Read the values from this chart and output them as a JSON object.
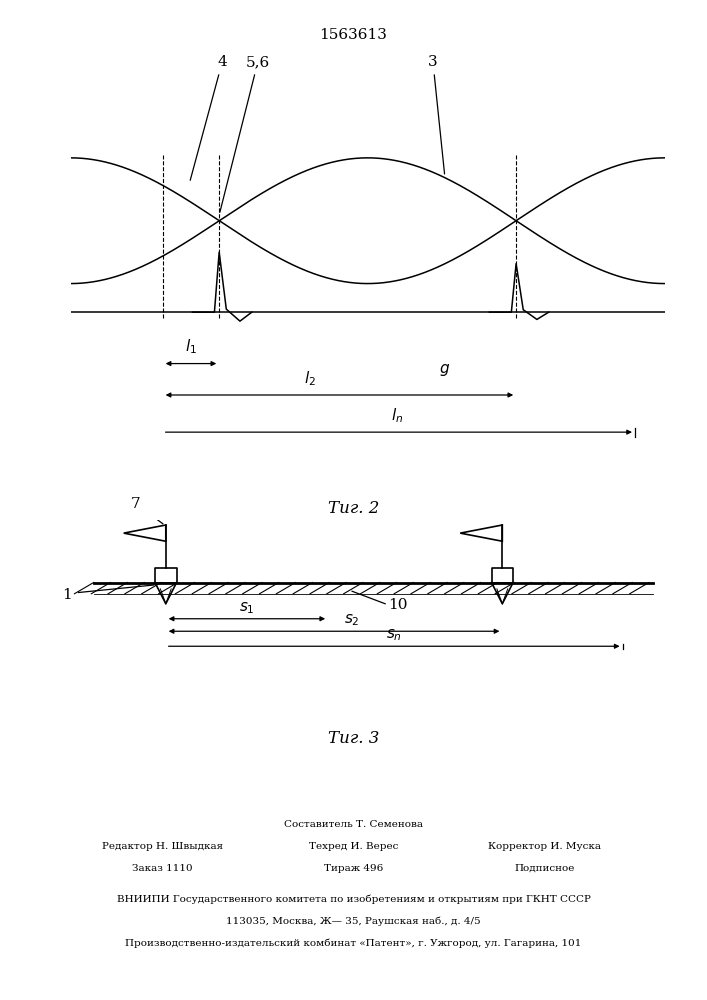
{
  "title": "1563613",
  "fig2_caption": "Τиг. 2",
  "fig3_caption": "Τиг. 3",
  "lc": "#000000",
  "bg": "#ffffff",
  "footer_col1_l1": "Редактор Н. Швыдкая",
  "footer_col1_l2": "Заказ 1110",
  "footer_col2_l1": "Составитель Т. Семенова",
  "footer_col2_l2": "Техред И. Верес",
  "footer_col2_l3": "Тираж 496",
  "footer_col3_l1": "Корректор И. Муска",
  "footer_col3_l2": "Подписное",
  "footer_vnipi": "ВНИИПИ Государственного комитета по изобретениям и открытиям при ГКНТ СССР",
  "footer_addr1": "113035, Москва, Ж— 35, Раушская наб., д. 4/5",
  "footer_addr2": "Производственно-издательский комбинат «Патент», г. Ужгород, ул. Гагарина, 101"
}
